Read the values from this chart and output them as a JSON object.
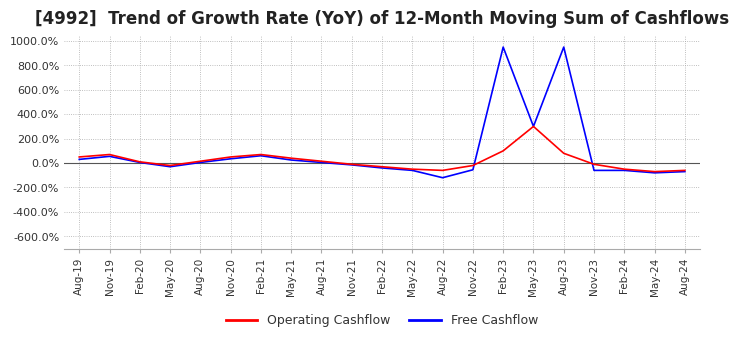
{
  "title": "[4992]  Trend of Growth Rate (YoY) of 12-Month Moving Sum of Cashflows",
  "title_fontsize": 12,
  "background_color": "#ffffff",
  "plot_background": "#ffffff",
  "grid_color": "#aaaaaa",
  "legend_labels": [
    "Operating Cashflow",
    "Free Cashflow"
  ],
  "legend_colors": [
    "#ff0000",
    "#0000ff"
  ],
  "x_labels": [
    "Aug-19",
    "Nov-19",
    "Feb-20",
    "May-20",
    "Aug-20",
    "Nov-20",
    "Feb-21",
    "May-21",
    "Aug-21",
    "Nov-21",
    "Feb-22",
    "May-22",
    "Aug-22",
    "Nov-22",
    "Feb-23",
    "May-23",
    "Aug-23",
    "Nov-23",
    "Feb-24",
    "May-24",
    "Aug-24"
  ],
  "ylim": [
    -700,
    1050
  ],
  "yticks": [
    -600,
    -400,
    -200,
    0,
    200,
    400,
    600,
    800,
    1000
  ],
  "operating_cf": [
    50,
    70,
    10,
    -20,
    15,
    50,
    70,
    40,
    15,
    -10,
    -30,
    -50,
    -60,
    -20,
    100,
    300,
    80,
    -10,
    -50,
    -70,
    -60
  ],
  "free_cf": [
    30,
    55,
    5,
    -30,
    5,
    35,
    60,
    25,
    5,
    -15,
    -40,
    -60,
    -120,
    -55,
    950,
    300,
    950,
    -60,
    -60,
    -80,
    -70
  ]
}
